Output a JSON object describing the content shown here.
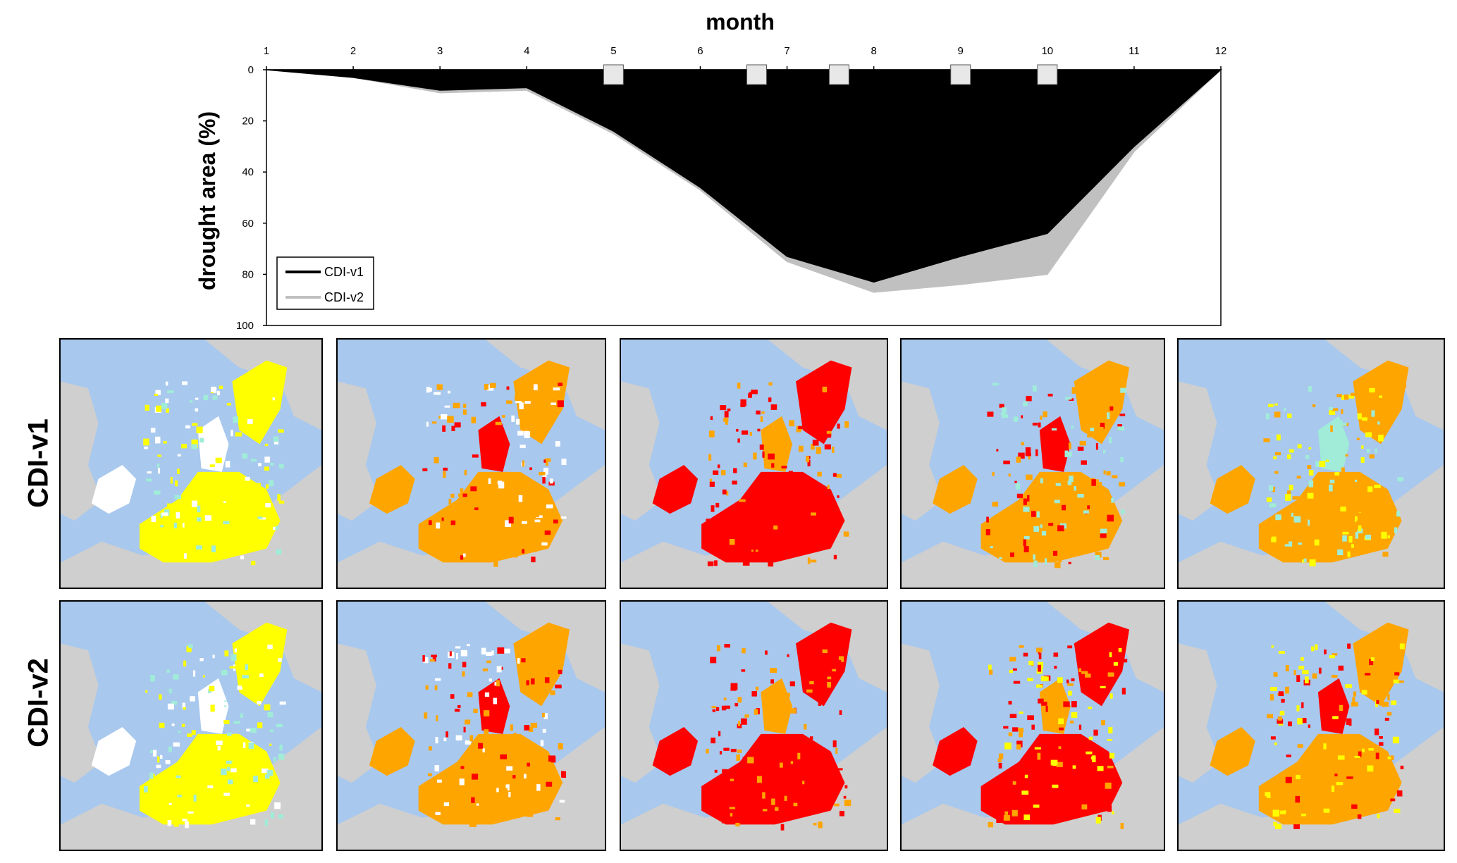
{
  "chart_data": {
    "type": "area",
    "xlabel": "month",
    "ylabel": "drought area (%)",
    "x": [
      1,
      2,
      3,
      4,
      5,
      6,
      7,
      8,
      9,
      10,
      11,
      12
    ],
    "x_ticks": [
      "1",
      "2",
      "3",
      "4",
      "5",
      "6",
      "7",
      "8",
      "9",
      "10",
      "11",
      "12"
    ],
    "y_ticks": [
      "0",
      "20",
      "40",
      "60",
      "80",
      "100"
    ],
    "ylim": [
      0,
      100
    ],
    "y_inverted": true,
    "grid": false,
    "legend_position": "bottom-left",
    "series": [
      {
        "name": "CDI-v1",
        "color": "#000000",
        "values": [
          0,
          3,
          8,
          7,
          24,
          46,
          73,
          83,
          73,
          64,
          30,
          0
        ]
      },
      {
        "name": "CDI-v2",
        "color": "#c0c0c0",
        "values": [
          0,
          3,
          9,
          8,
          25,
          47,
          75,
          87,
          84,
          80,
          32,
          0
        ]
      }
    ],
    "markers": {
      "shape": "square",
      "color": "#e8e8e8",
      "x": [
        5,
        6.65,
        7.6,
        9,
        10
      ]
    }
  },
  "rows": [
    {
      "label": "CDI-v1"
    },
    {
      "label": "CDI-v2"
    }
  ],
  "map_colors": {
    "sea": "#a8c8ee",
    "land_outside": "#cfcfcf",
    "no_drought": "#ffffff",
    "recovery": "#a0ecd8",
    "watch": "#ffff00",
    "warning": "#ffa500",
    "alert": "#ff0000",
    "partial": "#7aa04a"
  }
}
